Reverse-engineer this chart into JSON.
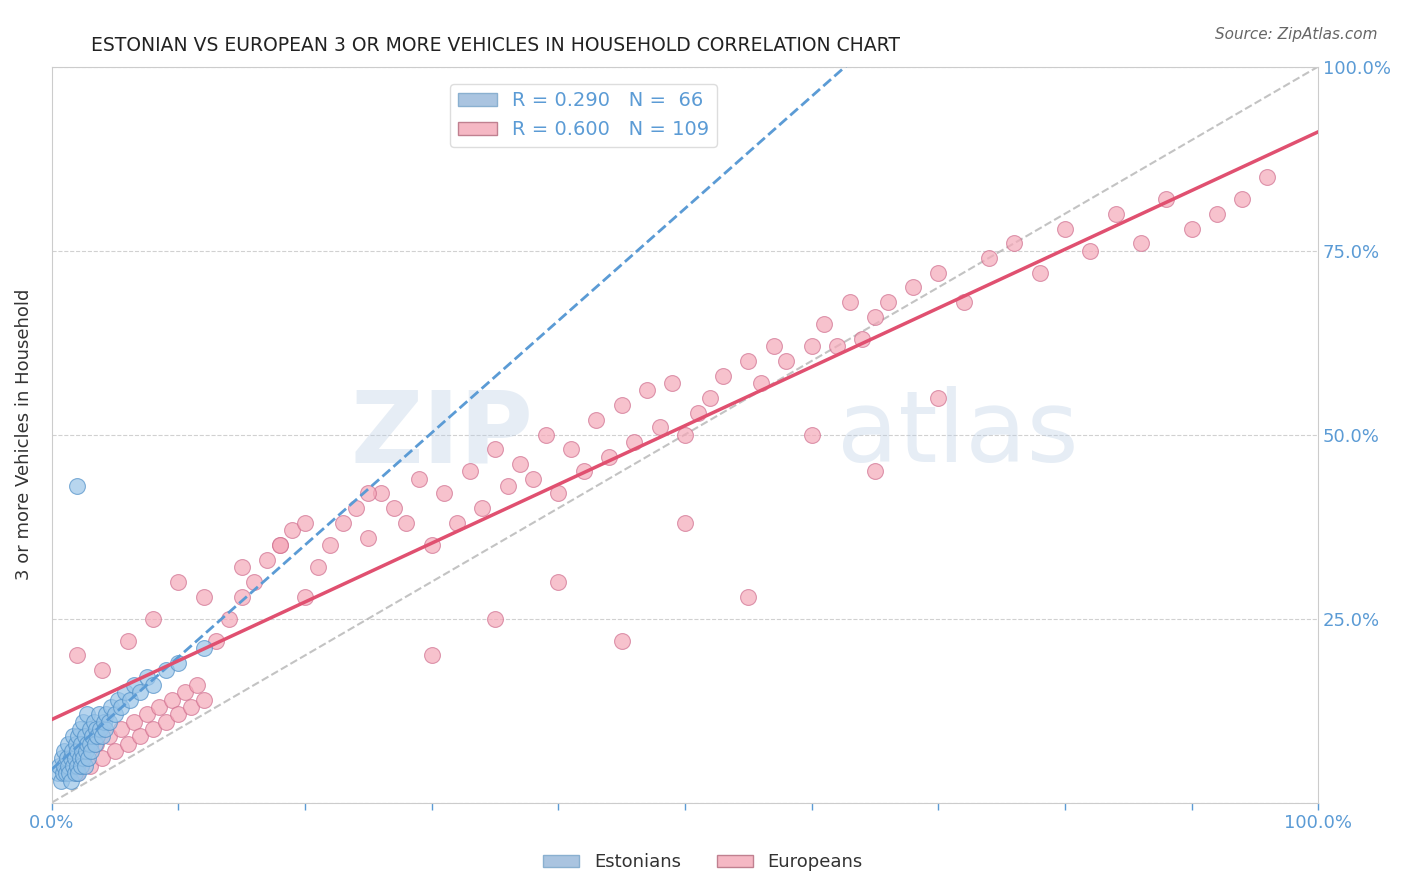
{
  "title": "ESTONIAN VS EUROPEAN 3 OR MORE VEHICLES IN HOUSEHOLD CORRELATION CHART",
  "source": "Source: ZipAtlas.com",
  "ylabel": "3 or more Vehicles in Household",
  "xlim": [
    0,
    1
  ],
  "ylim": [
    0,
    1
  ],
  "xtick_pos": [
    0,
    0.1,
    0.2,
    0.3,
    0.4,
    0.5,
    0.6,
    0.7,
    0.8,
    0.9,
    1.0
  ],
  "xtick_labels": [
    "0.0%",
    "",
    "",
    "",
    "",
    "",
    "",
    "",
    "",
    "",
    "100.0%"
  ],
  "ytick_pos": [
    0,
    0.25,
    0.5,
    0.75,
    1.0
  ],
  "ytick_labels_right": [
    "",
    "25.0%",
    "50.0%",
    "75.0%",
    "100.0%"
  ],
  "grid_color": "#cccccc",
  "background_color": "#ffffff",
  "estonians_color": "#99c4e8",
  "estonians_edge": "#5090c8",
  "europeans_color": "#f5a8b8",
  "europeans_edge": "#d07090",
  "estonian_line_color": "#5b9bd5",
  "european_line_color": "#e05070",
  "diagonal_color": "#aaaaaa",
  "tick_color": "#5b9bd5",
  "label_color": "#333333",
  "source_color": "#666666",
  "watermark_color": "#c8d8e8",
  "watermark_alpha": 0.35,
  "legend_box_color": "#aac4e0",
  "legend_box_color2": "#f5b8c4",
  "estonian_R": 0.29,
  "estonian_N": 66,
  "european_R": 0.6,
  "european_N": 109,
  "estonians_x": [
    0.005,
    0.006,
    0.007,
    0.008,
    0.009,
    0.01,
    0.01,
    0.011,
    0.012,
    0.013,
    0.013,
    0.014,
    0.015,
    0.015,
    0.016,
    0.017,
    0.017,
    0.018,
    0.018,
    0.019,
    0.02,
    0.02,
    0.021,
    0.021,
    0.022,
    0.022,
    0.023,
    0.023,
    0.024,
    0.025,
    0.025,
    0.026,
    0.026,
    0.027,
    0.028,
    0.028,
    0.029,
    0.03,
    0.03,
    0.031,
    0.032,
    0.033,
    0.034,
    0.035,
    0.036,
    0.037,
    0.038,
    0.04,
    0.041,
    0.042,
    0.043,
    0.045,
    0.047,
    0.05,
    0.052,
    0.055,
    0.058,
    0.062,
    0.065,
    0.07,
    0.075,
    0.08,
    0.09,
    0.1,
    0.12,
    0.02
  ],
  "estonians_y": [
    0.04,
    0.05,
    0.03,
    0.06,
    0.04,
    0.05,
    0.07,
    0.04,
    0.06,
    0.05,
    0.08,
    0.04,
    0.06,
    0.03,
    0.07,
    0.05,
    0.09,
    0.04,
    0.06,
    0.08,
    0.05,
    0.07,
    0.04,
    0.09,
    0.06,
    0.1,
    0.05,
    0.08,
    0.07,
    0.06,
    0.11,
    0.05,
    0.09,
    0.07,
    0.08,
    0.12,
    0.06,
    0.08,
    0.1,
    0.07,
    0.09,
    0.11,
    0.08,
    0.1,
    0.09,
    0.12,
    0.1,
    0.09,
    0.11,
    0.1,
    0.12,
    0.11,
    0.13,
    0.12,
    0.14,
    0.13,
    0.15,
    0.14,
    0.16,
    0.15,
    0.17,
    0.16,
    0.18,
    0.19,
    0.21,
    0.43
  ],
  "europeans_x": [
    0.01,
    0.015,
    0.02,
    0.025,
    0.03,
    0.035,
    0.04,
    0.045,
    0.05,
    0.055,
    0.06,
    0.065,
    0.07,
    0.075,
    0.08,
    0.085,
    0.09,
    0.095,
    0.1,
    0.105,
    0.11,
    0.115,
    0.12,
    0.13,
    0.14,
    0.15,
    0.16,
    0.17,
    0.18,
    0.19,
    0.2,
    0.21,
    0.22,
    0.23,
    0.24,
    0.25,
    0.26,
    0.27,
    0.28,
    0.29,
    0.3,
    0.31,
    0.32,
    0.33,
    0.34,
    0.35,
    0.36,
    0.37,
    0.38,
    0.39,
    0.4,
    0.41,
    0.42,
    0.43,
    0.44,
    0.45,
    0.46,
    0.47,
    0.48,
    0.49,
    0.5,
    0.51,
    0.52,
    0.53,
    0.55,
    0.56,
    0.57,
    0.58,
    0.6,
    0.61,
    0.62,
    0.63,
    0.64,
    0.65,
    0.66,
    0.68,
    0.7,
    0.72,
    0.74,
    0.76,
    0.78,
    0.8,
    0.82,
    0.84,
    0.86,
    0.88,
    0.9,
    0.92,
    0.94,
    0.96,
    0.02,
    0.04,
    0.06,
    0.08,
    0.1,
    0.12,
    0.15,
    0.18,
    0.2,
    0.25,
    0.3,
    0.35,
    0.4,
    0.45,
    0.5,
    0.55,
    0.6,
    0.65,
    0.7
  ],
  "europeans_y": [
    0.05,
    0.06,
    0.04,
    0.07,
    0.05,
    0.08,
    0.06,
    0.09,
    0.07,
    0.1,
    0.08,
    0.11,
    0.09,
    0.12,
    0.1,
    0.13,
    0.11,
    0.14,
    0.12,
    0.15,
    0.13,
    0.16,
    0.14,
    0.22,
    0.25,
    0.28,
    0.3,
    0.33,
    0.35,
    0.37,
    0.28,
    0.32,
    0.35,
    0.38,
    0.4,
    0.36,
    0.42,
    0.4,
    0.38,
    0.44,
    0.35,
    0.42,
    0.38,
    0.45,
    0.4,
    0.48,
    0.43,
    0.46,
    0.44,
    0.5,
    0.42,
    0.48,
    0.45,
    0.52,
    0.47,
    0.54,
    0.49,
    0.56,
    0.51,
    0.57,
    0.5,
    0.53,
    0.55,
    0.58,
    0.6,
    0.57,
    0.62,
    0.6,
    0.62,
    0.65,
    0.62,
    0.68,
    0.63,
    0.66,
    0.68,
    0.7,
    0.72,
    0.68,
    0.74,
    0.76,
    0.72,
    0.78,
    0.75,
    0.8,
    0.76,
    0.82,
    0.78,
    0.8,
    0.82,
    0.85,
    0.2,
    0.18,
    0.22,
    0.25,
    0.3,
    0.28,
    0.32,
    0.35,
    0.38,
    0.42,
    0.2,
    0.25,
    0.3,
    0.22,
    0.38,
    0.28,
    0.5,
    0.45,
    0.55
  ]
}
